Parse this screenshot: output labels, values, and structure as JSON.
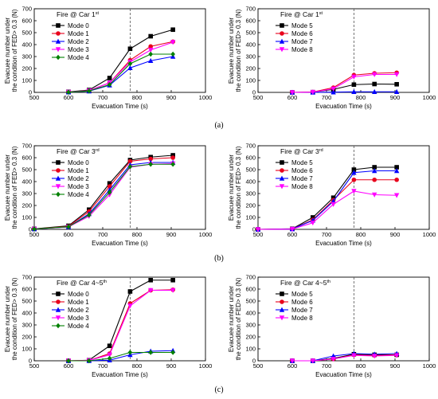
{
  "x_label": "Evacuation Time (s)",
  "y_label_line1": "Evacuee number under",
  "y_label_line2": "the condition of  FED> 0.3 (N)",
  "x_ticks": [
    500,
    600,
    700,
    800,
    900,
    1000
  ],
  "y_ticks": [
    0,
    100,
    200,
    300,
    400,
    500,
    600,
    700
  ],
  "row_captions": [
    "(a)",
    "(b)",
    "(c)"
  ],
  "series_colors": {
    "Mode 0": "#000000",
    "Mode 1": "#e8001c",
    "Mode 2": "#0000ff",
    "Mode 3": "#ff00ff",
    "Mode 4": "#008000",
    "Mode 5": "#000000",
    "Mode 6": "#e8001c",
    "Mode 7": "#0000ff",
    "Mode 8": "#ff00ff"
  },
  "series_markers": {
    "Mode 0": "square",
    "Mode 1": "circle",
    "Mode 2": "triangle-up",
    "Mode 3": "triangle-down",
    "Mode 4": "diamond",
    "Mode 5": "square",
    "Mode 6": "circle",
    "Mode 7": "triangle-up",
    "Mode 8": "triangle-down"
  },
  "chart_data": [
    {
      "type": "line",
      "title": "Fire @ Car 1",
      "title_sup": "st",
      "xlim": [
        500,
        1000
      ],
      "ylim": [
        0,
        700
      ],
      "vline_x": 780,
      "legend_position": "top-left",
      "x": [
        600,
        660,
        720,
        780,
        840,
        905
      ],
      "series": [
        {
          "name": "Mode 0",
          "values": [
            5,
            20,
            120,
            365,
            470,
            525
          ]
        },
        {
          "name": "Mode 1",
          "values": [
            3,
            15,
            80,
            270,
            385,
            425
          ]
        },
        {
          "name": "Mode 2",
          "values": [
            2,
            10,
            60,
            205,
            265,
            300
          ]
        },
        {
          "name": "Mode 3",
          "values": [
            3,
            15,
            80,
            255,
            355,
            420
          ]
        },
        {
          "name": "Mode 4",
          "values": [
            2,
            12,
            65,
            240,
            320,
            320
          ]
        }
      ]
    },
    {
      "type": "line",
      "title": "Fire @ Car 1",
      "title_sup": "st",
      "xlim": [
        500,
        1000
      ],
      "ylim": [
        0,
        700
      ],
      "vline_x": 780,
      "legend_position": "top-right",
      "x": [
        600,
        660,
        720,
        780,
        840,
        905
      ],
      "series": [
        {
          "name": "Mode 5",
          "values": [
            0,
            2,
            25,
            65,
            70,
            68
          ]
        },
        {
          "name": "Mode 6",
          "values": [
            0,
            3,
            40,
            145,
            160,
            165
          ]
        },
        {
          "name": "Mode 7",
          "values": [
            0,
            0,
            2,
            5,
            5,
            5
          ]
        },
        {
          "name": "Mode 8",
          "values": [
            0,
            2,
            30,
            130,
            150,
            150
          ]
        }
      ]
    },
    {
      "type": "line",
      "title": "Fire @ Car 3",
      "title_sup": "rd",
      "xlim": [
        500,
        1000
      ],
      "ylim": [
        0,
        700
      ],
      "vline_x": 780,
      "legend_position": "top-left",
      "x": [
        500,
        600,
        660,
        720,
        780,
        840,
        905
      ],
      "series": [
        {
          "name": "Mode 0",
          "values": [
            5,
            30,
            165,
            385,
            580,
            605,
            620
          ]
        },
        {
          "name": "Mode 1",
          "values": [
            4,
            25,
            150,
            360,
            570,
            590,
            600
          ]
        },
        {
          "name": "Mode 2",
          "values": [
            3,
            20,
            130,
            330,
            540,
            560,
            560
          ]
        },
        {
          "name": "Mode 3",
          "values": [
            3,
            20,
            110,
            290,
            520,
            545,
            550
          ]
        },
        {
          "name": "Mode 4",
          "values": [
            3,
            22,
            120,
            310,
            525,
            545,
            545
          ]
        }
      ]
    },
    {
      "type": "line",
      "title": "Fire @ Car 3",
      "title_sup": "rd",
      "xlim": [
        500,
        1000
      ],
      "ylim": [
        0,
        700
      ],
      "vline_x": 780,
      "legend_position": "top-left",
      "x": [
        500,
        600,
        660,
        720,
        780,
        840,
        905
      ],
      "series": [
        {
          "name": "Mode 5",
          "values": [
            0,
            5,
            100,
            265,
            500,
            520,
            520
          ]
        },
        {
          "name": "Mode 6",
          "values": [
            0,
            4,
            80,
            245,
            415,
            415,
            415
          ]
        },
        {
          "name": "Mode 7",
          "values": [
            0,
            3,
            75,
            235,
            475,
            490,
            490
          ]
        },
        {
          "name": "Mode 8",
          "values": [
            0,
            2,
            55,
            210,
            320,
            290,
            285
          ]
        }
      ]
    },
    {
      "type": "line",
      "title": "Fire @ Car 4~5",
      "title_sup": "th",
      "xlim": [
        500,
        1000
      ],
      "ylim": [
        0,
        700
      ],
      "vline_x": 780,
      "legend_position": "top-left",
      "x": [
        600,
        660,
        720,
        780,
        840,
        905
      ],
      "series": [
        {
          "name": "Mode 0",
          "values": [
            0,
            5,
            125,
            580,
            675,
            675
          ]
        },
        {
          "name": "Mode 1",
          "values": [
            0,
            3,
            60,
            480,
            590,
            595
          ]
        },
        {
          "name": "Mode 2",
          "values": [
            0,
            0,
            5,
            50,
            80,
            85
          ]
        },
        {
          "name": "Mode 3",
          "values": [
            0,
            3,
            50,
            460,
            590,
            590
          ]
        },
        {
          "name": "Mode 4",
          "values": [
            0,
            0,
            20,
            70,
            70,
            70
          ]
        }
      ]
    },
    {
      "type": "line",
      "title": "Fire @ Car 4~5",
      "title_sup": "th",
      "xlim": [
        500,
        1000
      ],
      "ylim": [
        0,
        700
      ],
      "vline_x": 780,
      "legend_position": "top-left",
      "x": [
        600,
        660,
        720,
        780,
        840,
        905
      ],
      "series": [
        {
          "name": "Mode 5",
          "values": [
            0,
            0,
            20,
            55,
            50,
            50
          ]
        },
        {
          "name": "Mode 6",
          "values": [
            0,
            0,
            15,
            50,
            45,
            50
          ]
        },
        {
          "name": "Mode 7",
          "values": [
            0,
            0,
            40,
            60,
            55,
            60
          ]
        },
        {
          "name": "Mode 8",
          "values": [
            0,
            0,
            15,
            45,
            40,
            45
          ]
        }
      ]
    }
  ]
}
